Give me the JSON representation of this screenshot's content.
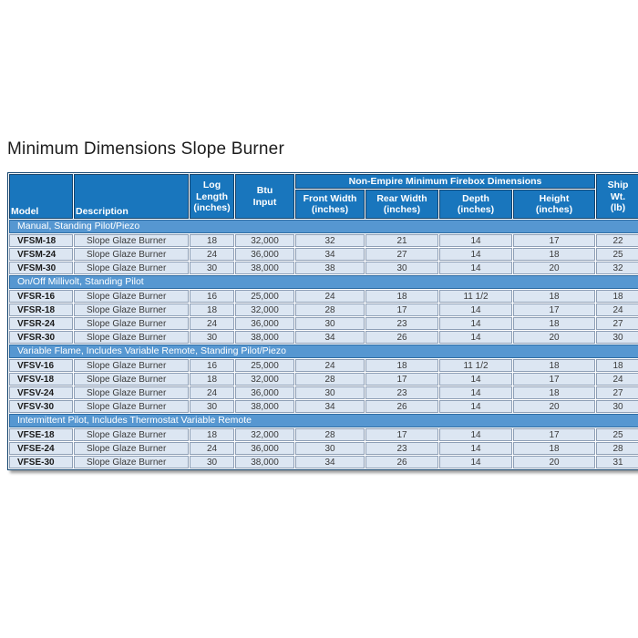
{
  "page": {
    "title": "Minimum Dimensions Slope Burner"
  },
  "table": {
    "group_header": "Non-Empire Minimum Firebox Dimensions",
    "columns": {
      "model": "Model",
      "description": "Description",
      "log_length": "Log\nLength\n(inches)",
      "btu_input": "Btu\nInput",
      "front_width": "Front Width\n(inches)",
      "rear_width": "Rear Width\n(inches)",
      "depth": "Depth\n(inches)",
      "height": "Height\n(inches)",
      "ship_wt": "Ship\nWt.\n(lb)"
    },
    "sections": [
      {
        "label": "Manual, Standing Pilot/Piezo",
        "rows": [
          {
            "cells": [
              "VFSM-18",
              "Slope Glaze Burner",
              "18",
              "32,000",
              "32",
              "21",
              "14",
              "17",
              "22"
            ]
          },
          {
            "cells": [
              "VFSM-24",
              "Slope Glaze Burner",
              "24",
              "36,000",
              "34",
              "27",
              "14",
              "18",
              "25"
            ]
          },
          {
            "cells": [
              "VFSM-30",
              "Slope Glaze Burner",
              "30",
              "38,000",
              "38",
              "30",
              "14",
              "20",
              "32"
            ]
          }
        ]
      },
      {
        "label": "On/Off Millivolt, Standing Pilot",
        "rows": [
          {
            "cells": [
              "VFSR-16",
              "Slope Glaze Burner",
              "16",
              "25,000",
              "24",
              "18",
              "11 1/2",
              "18",
              "18"
            ]
          },
          {
            "cells": [
              "VFSR-18",
              "Slope Glaze Burner",
              "18",
              "32,000",
              "28",
              "17",
              "14",
              "17",
              "24"
            ]
          },
          {
            "cells": [
              "VFSR-24",
              "Slope Glaze Burner",
              "24",
              "36,000",
              "30",
              "23",
              "14",
              "18",
              "27"
            ]
          },
          {
            "cells": [
              "VFSR-30",
              "Slope Glaze Burner",
              "30",
              "38,000",
              "34",
              "26",
              "14",
              "20",
              "30"
            ]
          }
        ]
      },
      {
        "label": "Variable Flame, Includes Variable Remote, Standing Pilot/Piezo",
        "rows": [
          {
            "cells": [
              "VFSV-16",
              "Slope Glaze Burner",
              "16",
              "25,000",
              "24",
              "18",
              "11 1/2",
              "18",
              "18"
            ]
          },
          {
            "cells": [
              "VFSV-18",
              "Slope Glaze Burner",
              "18",
              "32,000",
              "28",
              "17",
              "14",
              "17",
              "24"
            ]
          },
          {
            "cells": [
              "VFSV-24",
              "Slope Glaze Burner",
              "24",
              "36,000",
              "30",
              "23",
              "14",
              "18",
              "27"
            ]
          },
          {
            "cells": [
              "VFSV-30",
              "Slope Glaze Burner",
              "30",
              "38,000",
              "34",
              "26",
              "14",
              "20",
              "30"
            ]
          }
        ]
      },
      {
        "label": "Intermittent Pilot, Includes Thermostat Variable Remote",
        "rows": [
          {
            "cells": [
              "VFSE-18",
              "Slope Glaze Burner",
              "18",
              "32,000",
              "28",
              "17",
              "14",
              "17",
              "25"
            ]
          },
          {
            "cells": [
              "VFSE-24",
              "Slope Glaze Burner",
              "24",
              "36,000",
              "30",
              "23",
              "14",
              "18",
              "28"
            ]
          },
          {
            "cells": [
              "VFSE-30",
              "Slope Glaze Burner",
              "30",
              "38,000",
              "34",
              "26",
              "14",
              "20",
              "31"
            ]
          }
        ]
      }
    ],
    "colors": {
      "header_bg": "#1976BD",
      "section_band_bg": "#5697D1",
      "cell_bg": "#DCE6F2",
      "dark_border": "#12436E",
      "cell_border": "#8E9FB6"
    }
  }
}
